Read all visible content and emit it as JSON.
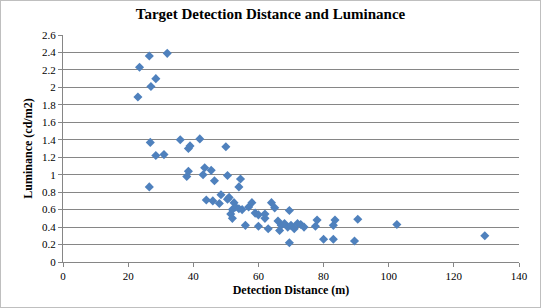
{
  "chart_data": {
    "type": "scatter",
    "title": "Target Detection Distance and Luminance",
    "x_label": "Detection Distance (m)",
    "y_label": "Luminance (cd/m2)",
    "x": [
      23,
      23.5,
      26.5,
      27,
      28.5,
      32,
      26.5,
      26.8,
      28.5,
      31,
      36,
      38,
      38.5,
      38.5,
      39,
      42,
      43,
      43.5,
      44,
      45.5,
      46,
      46.5,
      48,
      48.5,
      50,
      50.5,
      50.5,
      51,
      51.5,
      52,
      52,
      52.5,
      53,
      54,
      54,
      54.5,
      55,
      56,
      57,
      58,
      59,
      60,
      60,
      62,
      62,
      63,
      64,
      65,
      66,
      66.5,
      67,
      68,
      69,
      69.5,
      69.5,
      70,
      71,
      72,
      73,
      74,
      77.5,
      78,
      80,
      83,
      83,
      83.5,
      89.5,
      90.5,
      102.5,
      129.5
    ],
    "values": [
      1.89,
      2.23,
      2.36,
      2.01,
      2.1,
      2.39,
      0.86,
      1.37,
      1.22,
      1.23,
      1.4,
      0.98,
      1.04,
      1.3,
      1.33,
      1.41,
      1.0,
      1.08,
      0.71,
      1.05,
      0.7,
      0.93,
      0.67,
      0.77,
      1.32,
      0.99,
      0.72,
      0.74,
      0.55,
      0.5,
      0.6,
      0.68,
      0.63,
      0.61,
      0.86,
      0.95,
      0.6,
      0.42,
      0.63,
      0.68,
      0.56,
      0.54,
      0.41,
      0.5,
      0.55,
      0.38,
      0.68,
      0.62,
      0.47,
      0.36,
      0.42,
      0.44,
      0.4,
      0.59,
      0.22,
      0.42,
      0.38,
      0.44,
      0.43,
      0.4,
      0.41,
      0.48,
      0.26,
      0.26,
      0.42,
      0.48,
      0.24,
      0.49,
      0.43,
      0.3
    ],
    "color": "#4f81bd",
    "marker": "diamond",
    "xlim": [
      0,
      140
    ],
    "xticks": [
      0,
      20,
      40,
      60,
      80,
      100,
      120,
      140
    ],
    "ylim": [
      0,
      2.6
    ],
    "yticks": [
      0,
      0.2,
      0.4,
      0.6,
      0.8,
      1,
      1.2,
      1.4,
      1.6,
      1.8,
      2,
      2.2,
      2.4,
      2.6
    ],
    "grid": true
  }
}
